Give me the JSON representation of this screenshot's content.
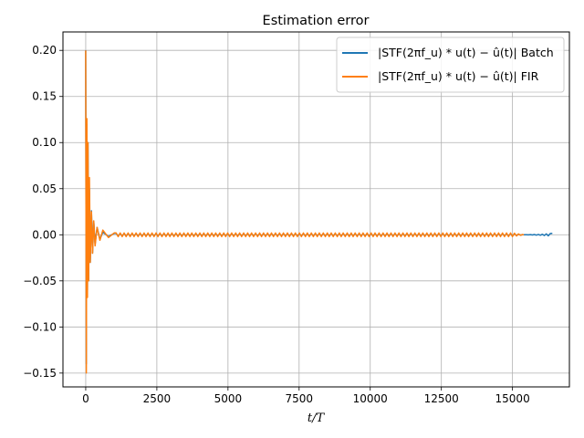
{
  "chart_data": {
    "type": "line",
    "title": "Estimation error",
    "xlabel": "t/T",
    "ylabel": "",
    "xlim": [
      -800,
      17000
    ],
    "ylim": [
      -0.165,
      0.22
    ],
    "xticks": [
      0,
      2500,
      5000,
      7500,
      10000,
      12500,
      15000
    ],
    "xtick_labels": [
      "0",
      "2500",
      "5000",
      "7500",
      "10000",
      "12500",
      "15000"
    ],
    "yticks": [
      -0.15,
      -0.1,
      -0.05,
      0.0,
      0.05,
      0.1,
      0.15,
      0.2
    ],
    "ytick_labels": [
      "−0.15",
      "−0.10",
      "−0.05",
      "0.00",
      "0.05",
      "0.10",
      "0.15",
      "0.20"
    ],
    "grid": true,
    "legend_position": "upper right",
    "series": [
      {
        "name": "|STF(2πf_u) * u(t) − û(t)| Batch",
        "color": "#1f77b4",
        "x": [
          0,
          20,
          40,
          60,
          80,
          100,
          130,
          160,
          200,
          240,
          280,
          330,
          400,
          500,
          600,
          800,
          1000,
          2000,
          5000,
          10000,
          15000,
          15400,
          16000,
          16400
        ],
        "y": [
          0.2,
          -0.14,
          0.12,
          -0.06,
          0.1,
          -0.05,
          0.05,
          -0.03,
          0.026,
          -0.02,
          0.015,
          -0.01,
          0.008,
          -0.005,
          0.003,
          -0.002,
          0.0015,
          0.001,
          0.001,
          0.001,
          0.001,
          0.0,
          0.0005,
          0.0015
        ]
      },
      {
        "name": "|STF(2πf_u) * u(t) − û(t)| FIR",
        "color": "#ff7f0e",
        "x": [
          0,
          20,
          40,
          60,
          80,
          100,
          130,
          160,
          200,
          240,
          280,
          330,
          400,
          500,
          600,
          800,
          1000,
          2000,
          5000,
          10000,
          15000,
          15400
        ],
        "y": [
          0.2,
          -0.15,
          0.126,
          -0.068,
          0.1,
          -0.05,
          0.062,
          -0.03,
          0.025,
          -0.02,
          0.015,
          -0.012,
          0.008,
          -0.006,
          0.005,
          -0.003,
          0.002,
          0.002,
          0.002,
          0.002,
          0.002,
          0.0
        ]
      }
    ]
  }
}
